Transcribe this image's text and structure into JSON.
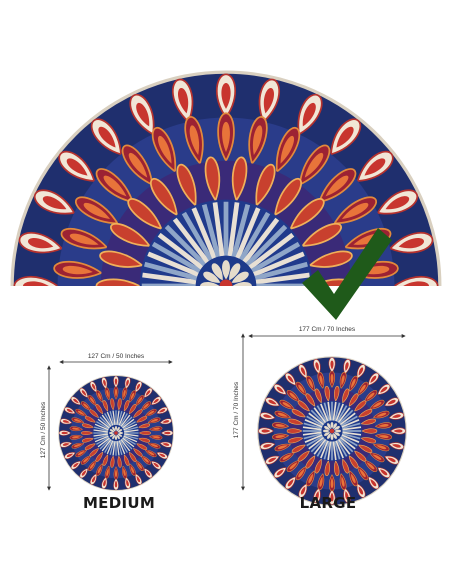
{
  "sizes": [
    {
      "label": "MEDIUM",
      "width": "127 Cm / 50 Inches",
      "height": "127 Cm / 50 Inches"
    },
    {
      "label": "LARGE",
      "width": "177 Cm / 70 Inches",
      "height": "177 Cm / 70 Inches"
    }
  ]
}
